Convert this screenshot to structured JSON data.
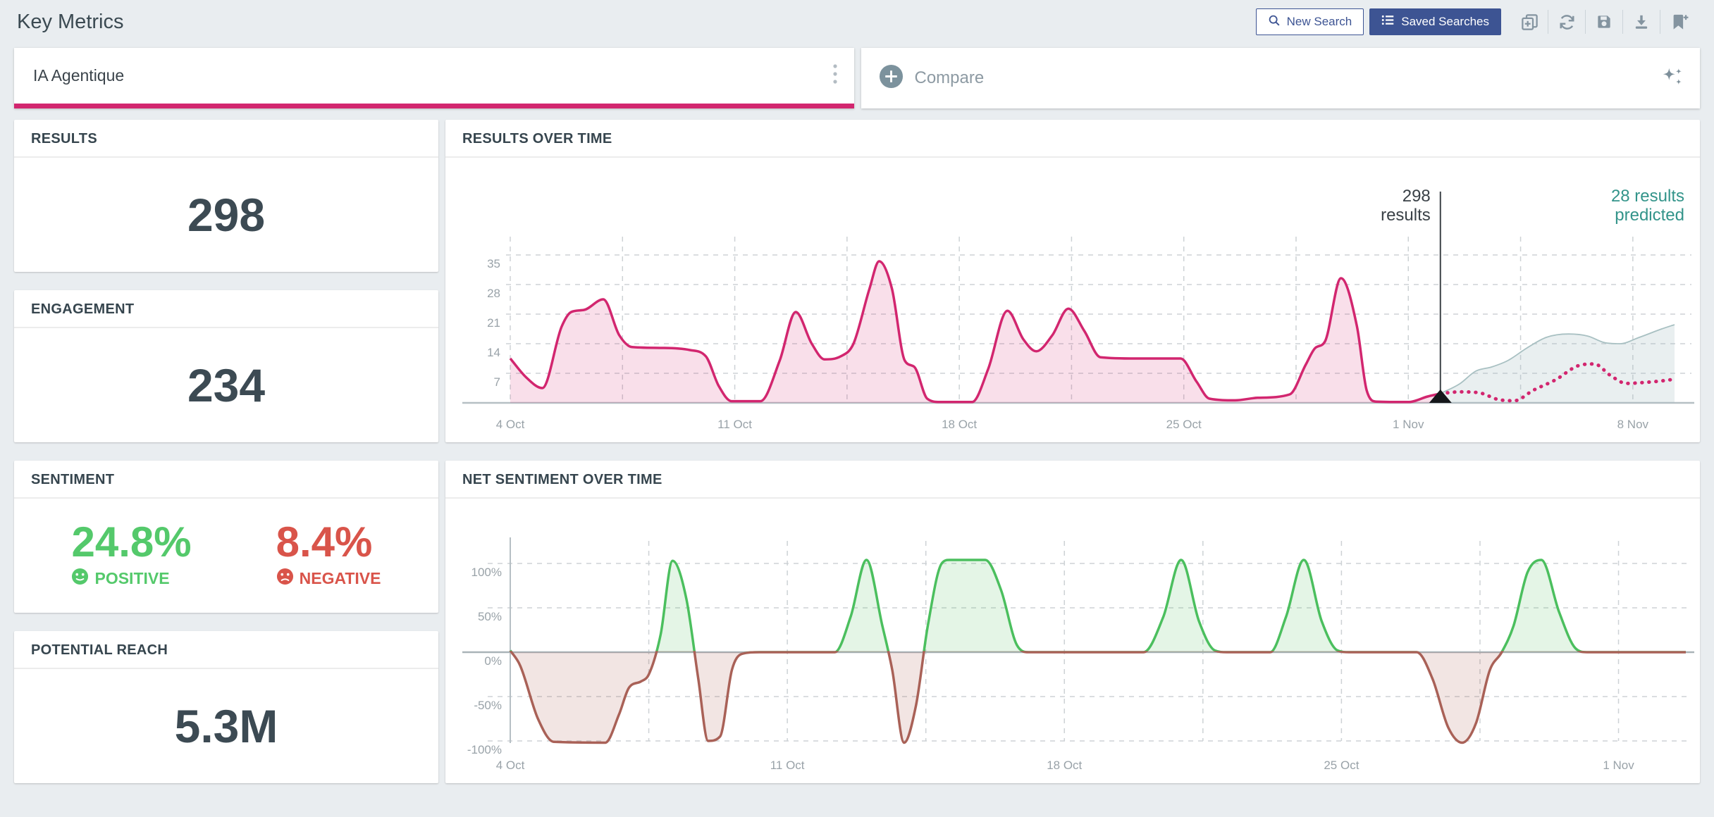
{
  "page": {
    "title": "Key Metrics"
  },
  "colors": {
    "accent_pink": "#d2266f",
    "brand_blue": "#3d5493",
    "teal_prediction": "#33948a",
    "positive_green": "#54c96b",
    "negative_red": "#d9544a"
  },
  "toolbar": {
    "new_search_label": "New Search",
    "saved_searches_label": "Saved Searches",
    "icon_buttons": [
      "add-to-dashboard-icon",
      "refresh-icon",
      "save-icon",
      "download-icon",
      "bookmark-add-icon"
    ]
  },
  "search_bar": {
    "query": "IA Agentique",
    "menu_icon": "kebab-menu-icon"
  },
  "compare_bar": {
    "label": "Compare",
    "add_icon": "plus-circle-icon",
    "ai_icon": "sparkles-icon"
  },
  "metrics": {
    "results": {
      "title": "RESULTS",
      "value": "298"
    },
    "engagement": {
      "title": "ENGAGEMENT",
      "value": "234"
    },
    "sentiment": {
      "title": "SENTIMENT",
      "positive": {
        "value": "24.8%",
        "label": "POSITIVE"
      },
      "negative": {
        "value": "8.4%",
        "label": "NEGATIVE"
      }
    },
    "reach": {
      "title": "POTENTIAL REACH",
      "value": "5.3M"
    }
  },
  "chart_data": [
    {
      "type": "area",
      "title": "RESULTS OVER TIME",
      "x_unit": "days since 4 Oct",
      "x_range": [
        0,
        36.3
      ],
      "x_ticks": [
        {
          "d": 0,
          "label": "4 Oct"
        },
        {
          "d": 7,
          "label": "11 Oct"
        },
        {
          "d": 14,
          "label": "18 Oct"
        },
        {
          "d": 21,
          "label": "25 Oct"
        },
        {
          "d": 28,
          "label": "1 Nov"
        },
        {
          "d": 35,
          "label": "8 Nov"
        }
      ],
      "minor_grid_step": 3.5,
      "y_ticks": [
        7,
        14,
        21,
        28,
        35
      ],
      "y_range": [
        0,
        38
      ],
      "grid": true,
      "legend_position": "none",
      "now_marker": {
        "d": 29,
        "annotation_left_lines": [
          "298",
          "results"
        ],
        "annotation_right_lines": [
          "28 results",
          "predicted"
        ],
        "annotation_right_color": "#33948a"
      },
      "series": [
        {
          "name": "results",
          "style": "area-line",
          "color": "#d2266f",
          "fill": "rgba(212,38,112,0.15)",
          "points": [
            [
              0,
              10.5
            ],
            [
              0.5,
              6
            ],
            [
              1,
              3.5
            ],
            [
              1.6,
              18
            ],
            [
              1.9,
              21.5
            ],
            [
              2.3,
              22
            ],
            [
              2.9,
              24.5
            ],
            [
              3.4,
              16
            ],
            [
              3.8,
              13.2
            ],
            [
              4.8,
              13
            ],
            [
              5.6,
              12.5
            ],
            [
              6.1,
              11
            ],
            [
              6.5,
              4
            ],
            [
              6.9,
              0.4
            ],
            [
              7.8,
              0.4
            ],
            [
              8.4,
              10
            ],
            [
              8.9,
              21.5
            ],
            [
              9.4,
              14
            ],
            [
              9.8,
              10.3
            ],
            [
              10.3,
              11
            ],
            [
              10.7,
              14
            ],
            [
              11.2,
              27
            ],
            [
              11.5,
              33.5
            ],
            [
              11.9,
              27
            ],
            [
              12.3,
              10
            ],
            [
              12.6,
              8.5
            ],
            [
              13,
              1
            ],
            [
              13.4,
              0.2
            ],
            [
              14.4,
              0.2
            ],
            [
              14.9,
              8
            ],
            [
              15.5,
              21.8
            ],
            [
              16,
              15
            ],
            [
              16.4,
              12.2
            ],
            [
              16.9,
              16
            ],
            [
              17.4,
              22.3
            ],
            [
              17.9,
              17
            ],
            [
              18.4,
              10.8
            ],
            [
              19.5,
              10.5
            ],
            [
              20.9,
              10.5
            ],
            [
              21.4,
              5
            ],
            [
              21.8,
              1
            ],
            [
              22.6,
              0.6
            ],
            [
              23.3,
              1.2
            ],
            [
              24.3,
              2
            ],
            [
              24.8,
              9
            ],
            [
              25.1,
              13
            ],
            [
              25.4,
              14.5
            ],
            [
              25.9,
              29.5
            ],
            [
              26.4,
              18
            ],
            [
              26.7,
              3
            ],
            [
              27,
              0.3
            ],
            [
              28,
              0.2
            ],
            [
              28.6,
              1.5
            ],
            [
              29,
              2.2
            ]
          ]
        },
        {
          "name": "prediction-band",
          "style": "band",
          "color": "#a8c0c2",
          "fill": "rgba(164,190,191,0.24)",
          "points": [
            [
              29,
              2.2
            ],
            [
              29.6,
              4.5
            ],
            [
              30.1,
              7.5
            ],
            [
              30.6,
              8.5
            ],
            [
              31.1,
              10
            ],
            [
              31.7,
              13
            ],
            [
              32.3,
              15.5
            ],
            [
              33,
              16.3
            ],
            [
              33.6,
              15.8
            ],
            [
              34.1,
              14.3
            ],
            [
              34.6,
              14
            ],
            [
              35.2,
              15.5
            ],
            [
              35.9,
              17.5
            ],
            [
              36.3,
              18.5
            ]
          ]
        },
        {
          "name": "predicted-results",
          "style": "dotted-line",
          "color": "#d2266f",
          "points": [
            [
              29,
              2.2
            ],
            [
              29.6,
              2.6
            ],
            [
              30.2,
              2.4
            ],
            [
              30.8,
              0.8
            ],
            [
              31.3,
              0.5
            ],
            [
              31.9,
              3
            ],
            [
              32.6,
              5.5
            ],
            [
              33.3,
              8.8
            ],
            [
              33.8,
              9.2
            ],
            [
              34.3,
              6.5
            ],
            [
              34.8,
              4.6
            ],
            [
              35.3,
              4.8
            ],
            [
              35.9,
              5.2
            ],
            [
              36.3,
              5.6
            ]
          ]
        }
      ]
    },
    {
      "type": "area-posneg",
      "title": "NET SENTIMENT OVER TIME",
      "x_unit": "days since 4 Oct",
      "x_range": [
        0,
        29.7
      ],
      "x_ticks": [
        {
          "d": 0,
          "label": "4 Oct"
        },
        {
          "d": 7,
          "label": "11 Oct"
        },
        {
          "d": 14,
          "label": "18 Oct"
        },
        {
          "d": 21,
          "label": "25 Oct"
        },
        {
          "d": 28,
          "label": "1 Nov"
        }
      ],
      "minor_grid_step": 3.5,
      "y_ticks": [
        {
          "v": 100,
          "label": "100%"
        },
        {
          "v": 50,
          "label": "50%"
        },
        {
          "v": 0,
          "label": "0%"
        },
        {
          "v": -50,
          "label": "-50%"
        },
        {
          "v": -100,
          "label": "-100%"
        }
      ],
      "y_range": [
        -110,
        110
      ],
      "grid": true,
      "legend_position": "none",
      "positive": {
        "color": "#4bbf5e",
        "fill": "rgba(86,193,100,0.16)"
      },
      "negative": {
        "color": "#a96157",
        "fill": "rgba(176,93,82,0.16)"
      },
      "points": [
        [
          0,
          2
        ],
        [
          0.25,
          -15
        ],
        [
          0.7,
          -75
        ],
        [
          1.1,
          -101
        ],
        [
          2.4,
          -102
        ],
        [
          2.75,
          -70
        ],
        [
          3,
          -40
        ],
        [
          3.3,
          -33
        ],
        [
          3.5,
          -25
        ],
        [
          3.8,
          20
        ],
        [
          4.1,
          103
        ],
        [
          4.45,
          60
        ],
        [
          4.75,
          -30
        ],
        [
          5,
          -100
        ],
        [
          5.3,
          -95
        ],
        [
          5.6,
          -20
        ],
        [
          5.85,
          -2
        ],
        [
          6.3,
          0
        ],
        [
          8.2,
          0
        ],
        [
          8.6,
          40
        ],
        [
          9,
          104
        ],
        [
          9.4,
          30
        ],
        [
          9.65,
          -20
        ],
        [
          9.95,
          -102
        ],
        [
          10.25,
          -60
        ],
        [
          10.55,
          30
        ],
        [
          10.9,
          100
        ],
        [
          11.1,
          104
        ],
        [
          12,
          104
        ],
        [
          12.4,
          70
        ],
        [
          12.8,
          8
        ],
        [
          13.1,
          0
        ],
        [
          16,
          0
        ],
        [
          16.5,
          40
        ],
        [
          16.95,
          104
        ],
        [
          17.4,
          35
        ],
        [
          17.8,
          2
        ],
        [
          18.1,
          0
        ],
        [
          19.2,
          0
        ],
        [
          19.6,
          40
        ],
        [
          20.05,
          104
        ],
        [
          20.5,
          35
        ],
        [
          20.9,
          2
        ],
        [
          21.2,
          0
        ],
        [
          22.9,
          0
        ],
        [
          23.3,
          -30
        ],
        [
          23.7,
          -85
        ],
        [
          24.05,
          -102
        ],
        [
          24.4,
          -80
        ],
        [
          24.75,
          -20
        ],
        [
          25.05,
          0
        ],
        [
          25.35,
          30
        ],
        [
          25.7,
          90
        ],
        [
          26.05,
          104
        ],
        [
          26.5,
          45
        ],
        [
          26.9,
          5
        ],
        [
          27.2,
          0
        ],
        [
          29.7,
          0
        ]
      ]
    }
  ]
}
